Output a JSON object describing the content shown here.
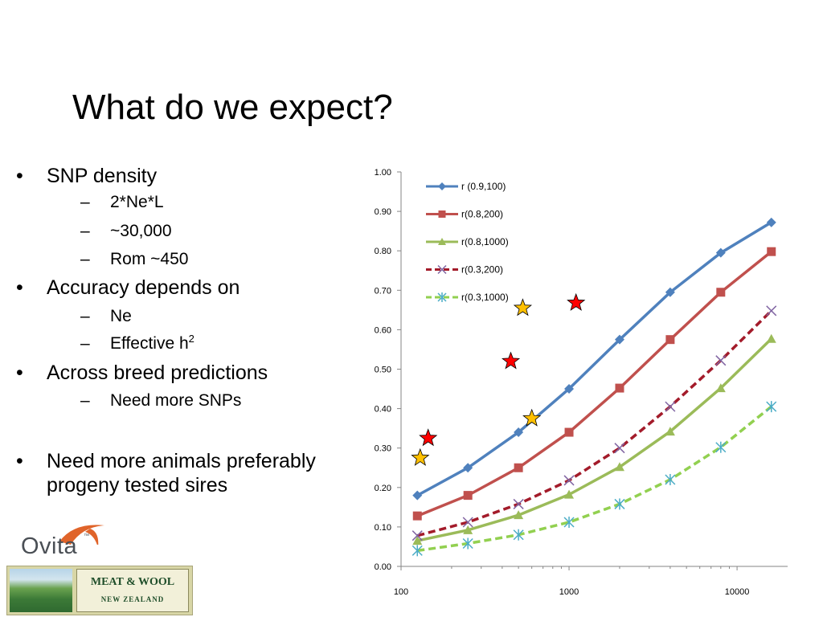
{
  "slide": {
    "title": "What do we expect?",
    "bullets": [
      {
        "text": "SNP density",
        "sub": [
          "2*Ne*L",
          "~30,000",
          "Rom ~450"
        ]
      },
      {
        "text": "Accuracy depends on",
        "sub": [
          "Ne",
          "Effective h"
        ]
      },
      {
        "text": "Across breed predictions",
        "sub": [
          "Need more SNPs"
        ]
      },
      {
        "text": "Need more animals preferably progeny tested sires",
        "sub": []
      }
    ],
    "superscript": "2",
    "bullet_glyph": "•",
    "dash_glyph": "–"
  },
  "logos": {
    "ovita": {
      "text": "Ovita",
      "tm": "™",
      "accent": "#e0642a"
    },
    "meat_wool": {
      "line1": "MEAT & WOOL",
      "line2": "NEW ZEALAND"
    }
  },
  "chart_data": {
    "type": "line",
    "x_scale": "log",
    "xlim": [
      100,
      20000
    ],
    "ylim": [
      0,
      1
    ],
    "x_ticks": [
      100,
      1000,
      10000
    ],
    "x_tick_labels": [
      "100",
      "1000",
      "10000"
    ],
    "y_ticks": [
      0,
      0.1,
      0.2,
      0.3,
      0.4,
      0.5,
      0.6,
      0.7,
      0.8,
      0.9,
      1.0
    ],
    "y_tick_labels": [
      "0.00",
      "0.10",
      "0.20",
      "0.30",
      "0.40",
      "0.50",
      "0.60",
      "0.70",
      "0.80",
      "0.90",
      "1.00"
    ],
    "grid": false,
    "legend_position": "top-left",
    "x": [
      125,
      250,
      500,
      1000,
      2000,
      4000,
      8000,
      16000
    ],
    "series": [
      {
        "name": "r (0.9,100)",
        "color": "#4f81bd",
        "marker": "diamond",
        "dash": false,
        "values": [
          0.18,
          0.25,
          0.34,
          0.45,
          0.575,
          0.695,
          0.795,
          0.872
        ]
      },
      {
        "name": "r(0.8,200)",
        "color": "#c0504d",
        "marker": "square",
        "dash": false,
        "values": [
          0.128,
          0.18,
          0.25,
          0.34,
          0.452,
          0.575,
          0.695,
          0.798
        ]
      },
      {
        "name": "r(0.8,1000)",
        "color": "#9bbb59",
        "marker": "triangle",
        "dash": false,
        "values": [
          0.065,
          0.092,
          0.13,
          0.182,
          0.252,
          0.342,
          0.452,
          0.577
        ]
      },
      {
        "name": "r(0.3,200)",
        "color": "#a31b2a",
        "marker_color": "#8064a2",
        "marker": "x",
        "dash": true,
        "values": [
          0.078,
          0.112,
          0.158,
          0.218,
          0.3,
          0.405,
          0.522,
          0.648
        ]
      },
      {
        "name": "r(0.3,1000)",
        "color": "#92d050",
        "marker_color": "#4bacc6",
        "marker": "asterisk",
        "dash": true,
        "values": [
          0.04,
          0.058,
          0.08,
          0.112,
          0.158,
          0.22,
          0.302,
          0.405
        ]
      }
    ],
    "annotations": [
      {
        "shape": "star",
        "color": "#ffc000",
        "x": 130,
        "y": 0.275
      },
      {
        "shape": "star",
        "color": "#ff0000",
        "x": 145,
        "y": 0.325
      },
      {
        "shape": "star",
        "color": "#ff0000",
        "x": 450,
        "y": 0.52
      },
      {
        "shape": "star",
        "color": "#ffc000",
        "x": 530,
        "y": 0.655
      },
      {
        "shape": "star",
        "color": "#ffc000",
        "x": 600,
        "y": 0.375
      },
      {
        "shape": "star",
        "color": "#ff0000",
        "x": 1100,
        "y": 0.668
      }
    ]
  }
}
